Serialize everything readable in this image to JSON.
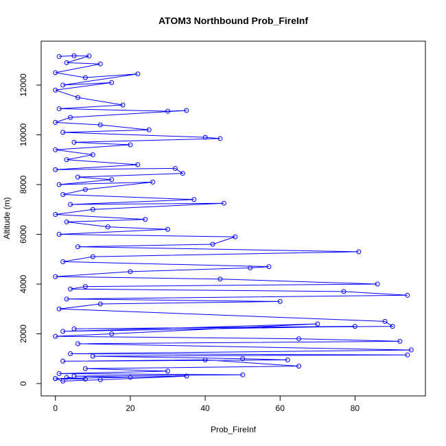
{
  "chart_data": {
    "type": "line",
    "title": "ATOM3 Northbound Prob_FireInf",
    "xlabel": "Prob_FireInf",
    "ylabel": "Altitude (m)",
    "color": "#0000ff",
    "markers": true,
    "xlim": [
      -3.8,
      98.8
    ],
    "ylim": [
      -497,
      13766
    ],
    "xticks": [
      0,
      20,
      40,
      60,
      80
    ],
    "yticks": [
      0,
      2000,
      4000,
      6000,
      8000,
      10000,
      12000
    ],
    "x": [
      1,
      5,
      9,
      3,
      12,
      0,
      8,
      22,
      2,
      15,
      0,
      6,
      18,
      1,
      30,
      35,
      4,
      0,
      12,
      25,
      2,
      40,
      44,
      5,
      20,
      0,
      10,
      3,
      22,
      0,
      32,
      34,
      6,
      15,
      1,
      26,
      8,
      2,
      37,
      4,
      45,
      10,
      0,
      24,
      3,
      14,
      30,
      1,
      48,
      42,
      6,
      81,
      10,
      2,
      57,
      52,
      20,
      0,
      44,
      86,
      8,
      4,
      77,
      94,
      3,
      60,
      12,
      1,
      88,
      90,
      5,
      80,
      2,
      70,
      15,
      0,
      65,
      92,
      6,
      95,
      4,
      94,
      10,
      50,
      62,
      2,
      40,
      65,
      8,
      30,
      1,
      50,
      5,
      20,
      0,
      35,
      12,
      2,
      0,
      8,
      3
    ],
    "values": [
      13150,
      13180,
      13170,
      12900,
      12850,
      12500,
      12300,
      12450,
      12000,
      12100,
      11800,
      11500,
      11200,
      11050,
      10950,
      10980,
      10700,
      10500,
      10400,
      10200,
      10100,
      9900,
      9850,
      9700,
      9600,
      9400,
      9200,
      9000,
      8800,
      8600,
      8650,
      8450,
      8300,
      8200,
      8000,
      8100,
      7800,
      7600,
      7400,
      7200,
      7250,
      7000,
      6800,
      6600,
      6500,
      6300,
      6200,
      6000,
      5900,
      5600,
      5500,
      5300,
      5100,
      4900,
      4700,
      4650,
      4500,
      4300,
      4200,
      4000,
      3900,
      3800,
      3700,
      3550,
      3400,
      3300,
      3200,
      3000,
      2500,
      2300,
      2200,
      2300,
      2100,
      2400,
      2000,
      1900,
      1800,
      1700,
      1600,
      1350,
      1200,
      1150,
      1100,
      1000,
      950,
      900,
      950,
      700,
      600,
      500,
      400,
      350,
      300,
      250,
      200,
      300,
      150,
      100,
      200,
      180,
      250
    ]
  }
}
